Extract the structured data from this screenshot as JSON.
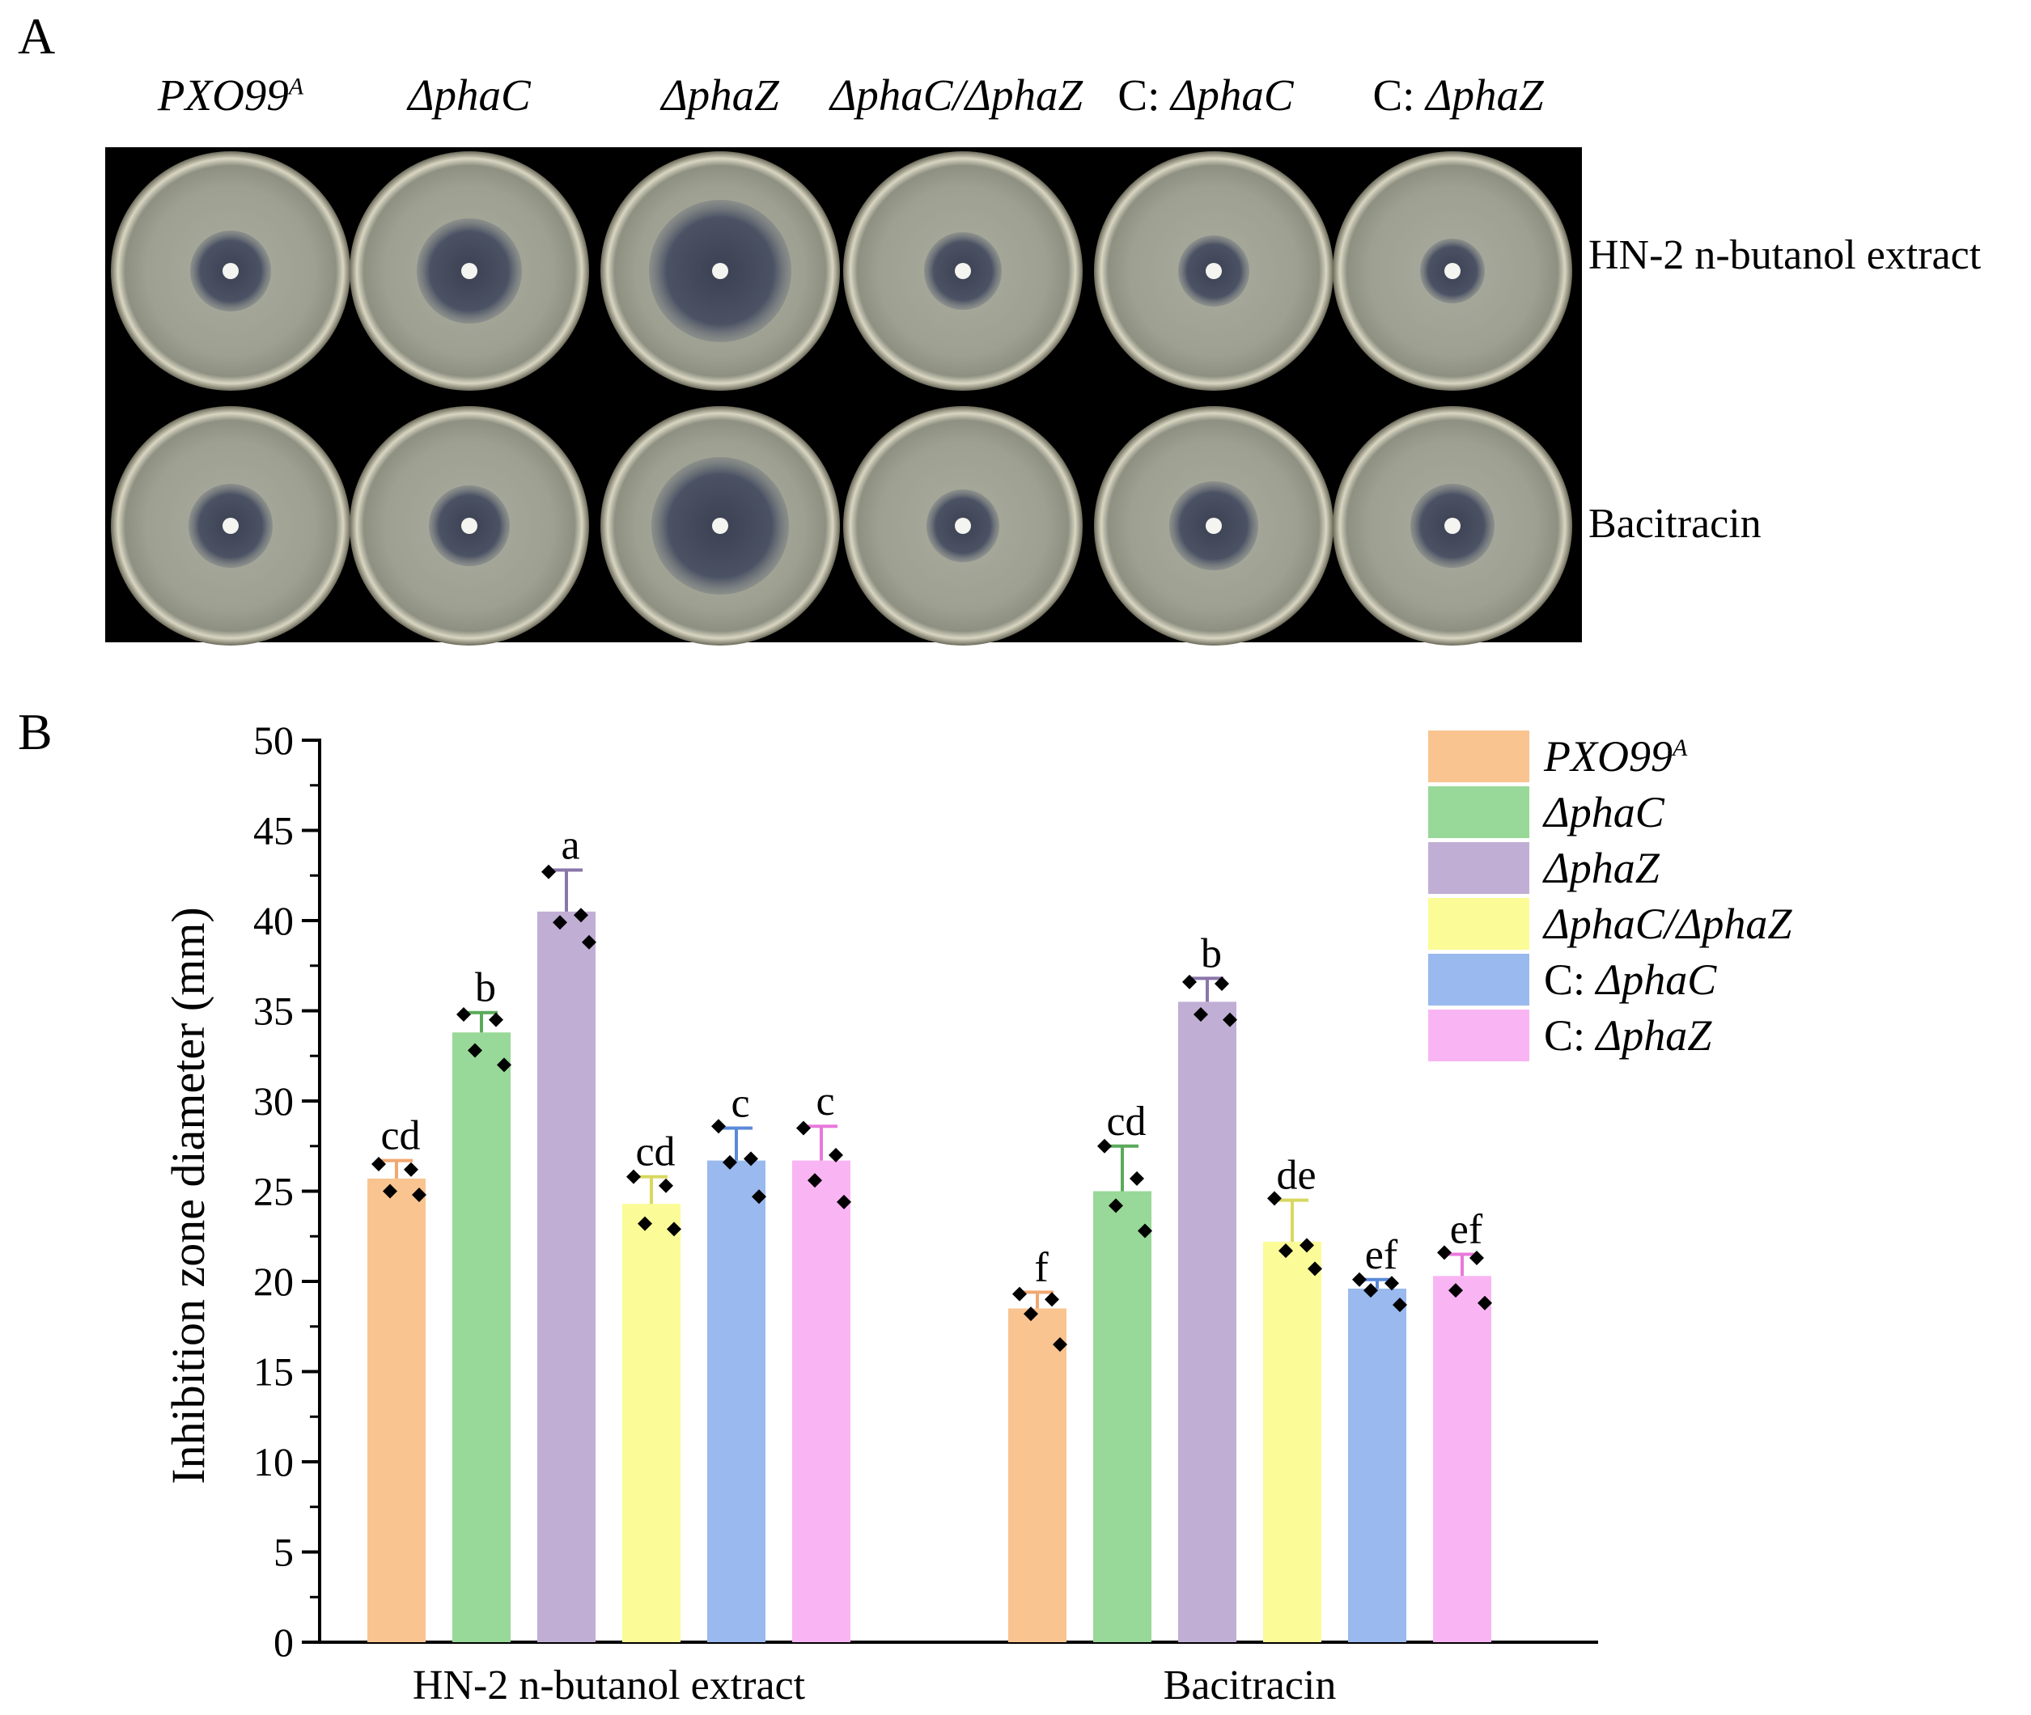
{
  "panel_a": {
    "letter": "A",
    "strains": [
      {
        "text": "PXO99",
        "sup": "A",
        "prefix": ""
      },
      {
        "text": "ΔphaC",
        "sup": "",
        "prefix": ""
      },
      {
        "text": "ΔphaZ",
        "sup": "",
        "prefix": ""
      },
      {
        "text": "ΔphaC/ΔphaZ",
        "sup": "",
        "prefix": ""
      },
      {
        "text": "ΔphaC",
        "sup": "",
        "prefix": "C: "
      },
      {
        "text": "ΔphaZ",
        "sup": "",
        "prefix": "C: "
      }
    ],
    "rows": [
      {
        "label": "HN-2 n-butanol extract"
      },
      {
        "label": "Bacitracin"
      }
    ]
  },
  "panel_b": {
    "letter": "B"
  },
  "colors": {
    "PXO99A": "#f9c490",
    "phaC": "#98d898",
    "phaZ": "#c1aed5",
    "phaC_phaZ": "#fbfb98",
    "C_phaC": "#9ab9ee",
    "C_phaZ": "#f9b5f3",
    "PXO99A_err": "#f0a870",
    "phaC_err": "#5aaa5a",
    "phaZ_err": "#8a76aa",
    "phaC_phaZ_err": "#d8d860",
    "C_phaC_err": "#5a8ad8",
    "C_phaZ_err": "#e878dc"
  },
  "chart_data": {
    "type": "bar",
    "title": "",
    "xlabel": "",
    "ylabel": "Inhibition zone diameter (mm)",
    "ylim": [
      0,
      50
    ],
    "yticks": [
      0,
      5,
      10,
      15,
      20,
      25,
      30,
      35,
      40,
      45,
      50
    ],
    "categories": [
      "HN-2 n-butanol extract",
      "Bacitracin"
    ],
    "legend_position": "top-right",
    "series": [
      {
        "key": "PXO99A",
        "name": "PXO99",
        "sup": "A",
        "prefix": "",
        "values": [
          25.7,
          18.5
        ],
        "errors": [
          1.0,
          0.9
        ],
        "letters": [
          "cd",
          "f"
        ],
        "points": [
          [
            26.5,
            26.2,
            25.0,
            24.8
          ],
          [
            19.3,
            19.0,
            18.2,
            16.5
          ]
        ]
      },
      {
        "key": "phaC",
        "name": "ΔphaC",
        "sup": "",
        "prefix": "",
        "values": [
          33.8,
          25.0
        ],
        "errors": [
          1.1,
          2.5
        ],
        "letters": [
          "b",
          "cd"
        ],
        "points": [
          [
            34.8,
            34.5,
            32.8,
            32.0
          ],
          [
            27.5,
            25.7,
            24.2,
            22.8
          ]
        ]
      },
      {
        "key": "phaZ",
        "name": "ΔphaZ",
        "sup": "",
        "prefix": "",
        "values": [
          40.5,
          35.5
        ],
        "errors": [
          2.3,
          1.3
        ],
        "letters": [
          "a",
          "b"
        ],
        "points": [
          [
            42.7,
            40.3,
            39.9,
            38.8
          ],
          [
            36.6,
            36.5,
            34.8,
            34.5
          ]
        ]
      },
      {
        "key": "phaC_phaZ",
        "name": "ΔphaC/ΔphaZ",
        "sup": "",
        "prefix": "",
        "values": [
          24.3,
          22.2
        ],
        "errors": [
          1.5,
          2.3
        ],
        "letters": [
          "cd",
          "de"
        ],
        "points": [
          [
            25.8,
            25.3,
            23.2,
            22.9
          ],
          [
            24.6,
            22.0,
            21.7,
            20.7
          ]
        ]
      },
      {
        "key": "C_phaC",
        "name": "ΔphaC",
        "sup": "",
        "prefix": "C: ",
        "values": [
          26.7,
          19.6
        ],
        "errors": [
          1.8,
          0.5
        ],
        "letters": [
          "c",
          "ef"
        ],
        "points": [
          [
            28.6,
            26.8,
            26.6,
            24.7
          ],
          [
            20.1,
            19.9,
            19.5,
            18.7
          ]
        ]
      },
      {
        "key": "C_phaZ",
        "name": "ΔphaZ",
        "sup": "",
        "prefix": "C: ",
        "values": [
          26.7,
          20.3
        ],
        "errors": [
          1.9,
          1.2
        ],
        "letters": [
          "c",
          "ef"
        ],
        "points": [
          [
            28.5,
            27.0,
            25.6,
            24.4
          ],
          [
            21.6,
            21.3,
            19.5,
            18.8
          ]
        ]
      }
    ]
  }
}
